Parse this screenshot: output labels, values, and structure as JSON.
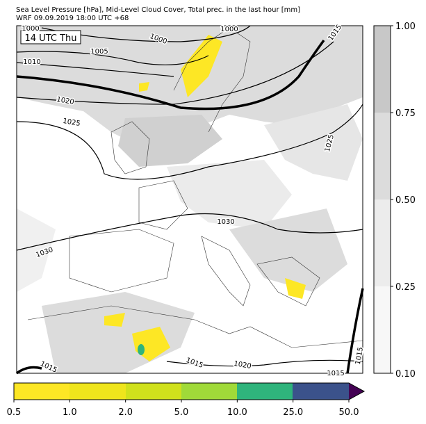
{
  "header": {
    "title": "Sea Level Pressure [hPa], Mid-Level Cloud Cover, Total prec. in the last hour [mm]",
    "subtitle": "WRF 09.09.2019 18:00 UTC +68"
  },
  "map": {
    "time_label": "14 UTC Thu",
    "isobar_labels": [
      "1000",
      "1000",
      "1000",
      "1005",
      "1010",
      "1015",
      "1020",
      "1025",
      "1025",
      "1030",
      "1030",
      "1015",
      "1020",
      "1015",
      "1015",
      "1015"
    ]
  },
  "cloud_colorbar": {
    "ticks": [
      "1.00",
      "0.75",
      "0.50",
      "0.25",
      "0.10"
    ]
  },
  "precip_colorbar": {
    "ticks": [
      "0.5",
      "1.0",
      "2.0",
      "5.0",
      "10.0",
      "25.0",
      "50.0"
    ]
  }
}
